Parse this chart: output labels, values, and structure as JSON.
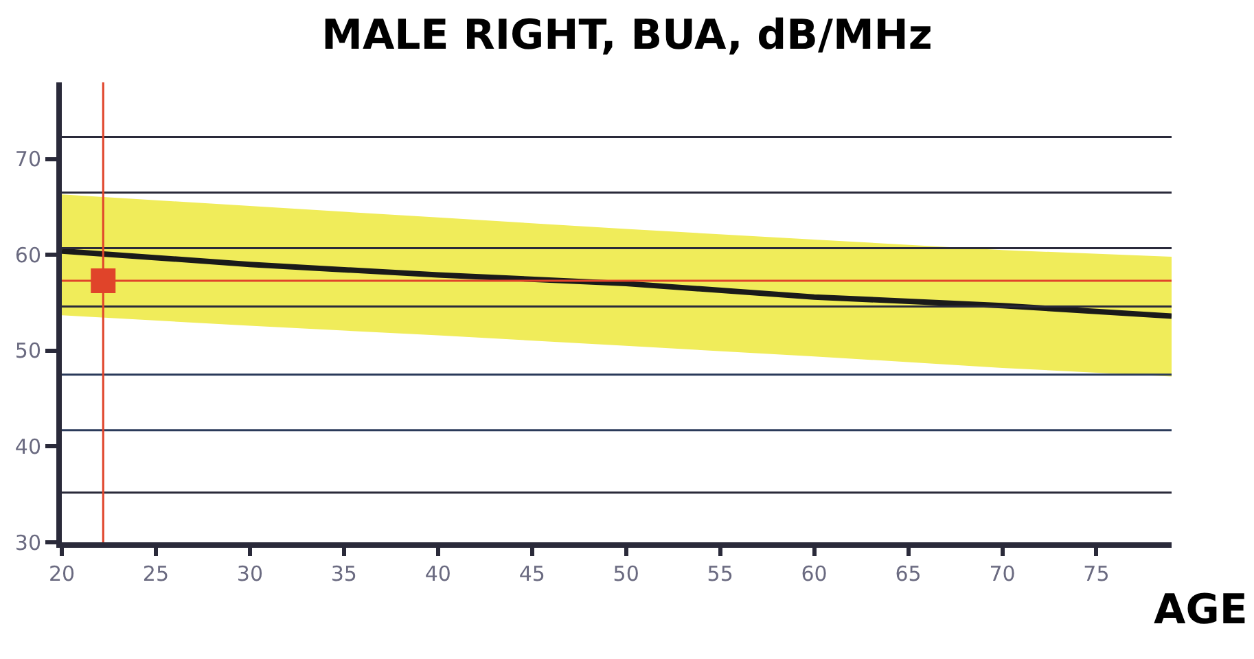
{
  "chart_data": {
    "type": "line",
    "title": "MALE RIGHT, BUA, dB/MHz",
    "xlabel": "AGE",
    "x": [
      20,
      30,
      40,
      50,
      60,
      70,
      79
    ],
    "series": [
      {
        "color": "#1a1a1a",
        "values": [
          60.4,
          59.0,
          57.9,
          57.0,
          55.6,
          54.7,
          53.6
        ],
        "lower": [
          53.7,
          52.6,
          51.6,
          50.5,
          49.4,
          48.2,
          47.3
        ],
        "upper": [
          66.3,
          65.1,
          63.9,
          62.7,
          61.6,
          60.5,
          59.8
        ]
      },
      {
        "type": "scatter",
        "color": "#e0442a",
        "marker": "square",
        "x": [
          22.2
        ],
        "values": [
          57.3
        ]
      }
    ],
    "xlim": [
      20,
      79
    ],
    "ylim": [
      30,
      78
    ],
    "xticks": [
      20,
      25,
      30,
      35,
      40,
      45,
      50,
      55,
      60,
      65,
      70,
      75
    ],
    "yticks": [
      30,
      40,
      50,
      60,
      70
    ],
    "marker": "none",
    "ref_lines": [
      {
        "axis": "y",
        "value": 72.3,
        "color": "#2a2a3a"
      },
      {
        "axis": "y",
        "value": 66.5,
        "color": "#2a2a3a"
      },
      {
        "axis": "y",
        "value": 60.7,
        "color": "#2a2a3a"
      },
      {
        "axis": "y",
        "value": 54.6,
        "color": "#2a2a3a"
      },
      {
        "axis": "y",
        "value": 47.5,
        "color": "#2a3a5a"
      },
      {
        "axis": "y",
        "value": 41.7,
        "color": "#2a3a5a"
      },
      {
        "axis": "y",
        "value": 35.2,
        "color": "#2a2a3a"
      },
      {
        "axis": "x",
        "value": 22.2,
        "color": "#e0442a"
      },
      {
        "axis": "y",
        "value": 57.3,
        "color": "#e0442a"
      }
    ]
  }
}
